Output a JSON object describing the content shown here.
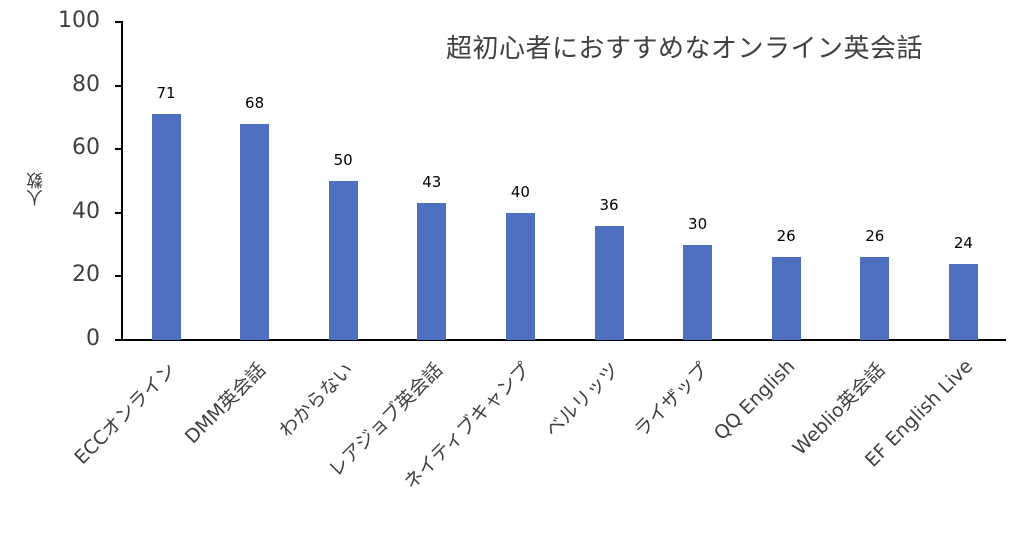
{
  "chart_data": {
    "type": "bar",
    "title": "超初心者におすすめなオンライン英会話",
    "xlabel": "",
    "ylabel": "人数",
    "ylim": [
      0,
      100
    ],
    "yticks": [
      0,
      20,
      40,
      60,
      80,
      100
    ],
    "grid": false,
    "legend": null,
    "bar_color": "#4E70BE",
    "categories": [
      "ECCオンライン",
      "DMM英会話",
      "わからない",
      "レアジョブ英会話",
      "ネイティブキャンプ",
      "ベルリッツ",
      "ライザップ",
      "QQ English",
      "Weblio英会話",
      "EF English Live"
    ],
    "values": [
      71,
      68,
      50,
      43,
      40,
      36,
      30,
      26,
      26,
      24
    ]
  }
}
